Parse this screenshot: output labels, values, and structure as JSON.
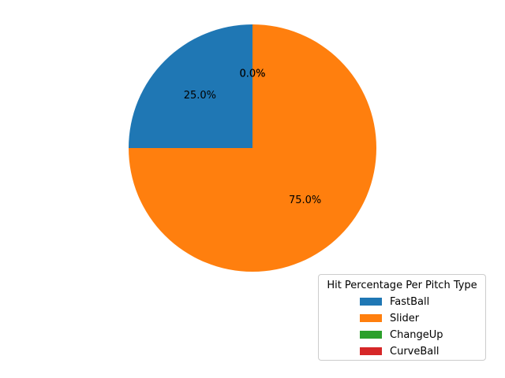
{
  "chart_data": {
    "type": "pie",
    "labels": [
      "FastBall",
      "Slider",
      "ChangeUp",
      "CurveBall"
    ],
    "values": [
      25.0,
      75.0,
      0.0,
      0.0
    ],
    "slice_labels": [
      "25.0%",
      "75.0%",
      "0.0%",
      "0.0%"
    ],
    "colors": [
      "#1f77b4",
      "#ff7f0e",
      "#2ca02c",
      "#d62728"
    ],
    "start_angle_deg": 90,
    "direction": "counterclockwise",
    "legend": {
      "title": "Hit Percentage Per Pitch Type",
      "placement": "lower-right",
      "entries": [
        "FastBall",
        "Slider",
        "ChangeUp",
        "CurveBall"
      ]
    }
  }
}
